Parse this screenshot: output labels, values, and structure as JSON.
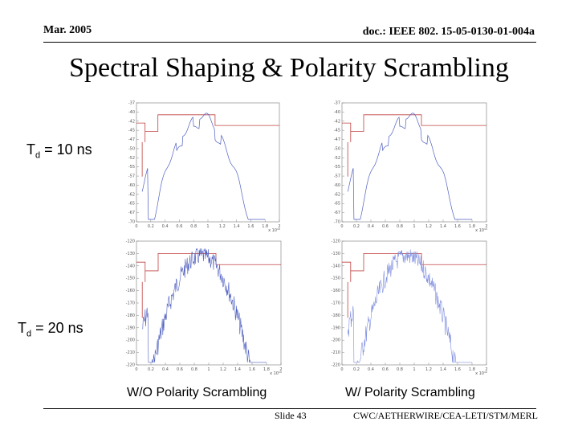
{
  "header": {
    "date": "Mar. 2005",
    "doc": "doc.: IEEE 802. 15-05-0130-01-004a"
  },
  "title": "Spectral Shaping & Polarity Scrambling",
  "row_labels": [
    {
      "prefix": "T",
      "sub": "d",
      "text": " = 10 ns"
    },
    {
      "prefix": "T",
      "sub": "d",
      "text": " = 20 ns"
    }
  ],
  "captions": {
    "left": "W/O Polarity Scrambling",
    "right": "W/ Polarity Scrambling"
  },
  "footer": {
    "slide": "Slide 43",
    "org": "CWC/AETHERWIRE/CEA-LETI/STM/MERL"
  },
  "colors": {
    "mask": "#c04040",
    "trace": "#5060c0",
    "trace_light": "#8090e0",
    "frame": "#999999"
  },
  "chart_data": [
    {
      "type": "line",
      "panel": "top-left",
      "x_ticks": [
        "0",
        "0.2",
        "0.4",
        "0.6",
        "0.8",
        "1",
        "1.2",
        "1.4",
        "1.6",
        "1.8",
        "2"
      ],
      "x_unit": "x 10¹⁰",
      "y_ticks": [
        "-37",
        "-40",
        "-42",
        "-45",
        "-47",
        "-50",
        "-52",
        "-55",
        "-57",
        "-60",
        "-62",
        "-65",
        "-67",
        "-70"
      ],
      "noise": "low"
    },
    {
      "type": "line",
      "panel": "top-right",
      "x_ticks": [
        "0",
        "0.2",
        "0.4",
        "0.6",
        "0.8",
        "1",
        "1.2",
        "1.4",
        "1.6",
        "1.8",
        "2"
      ],
      "x_unit": "x 10¹⁰",
      "y_ticks": [
        "-37",
        "-40",
        "-42",
        "-45",
        "-47",
        "-50",
        "-52",
        "-55",
        "-57",
        "-60",
        "-62",
        "-65",
        "-67",
        "-70"
      ],
      "noise": "low"
    },
    {
      "type": "line",
      "panel": "bottom-left",
      "x_ticks": [
        "0",
        "0.2",
        "0.4",
        "0.6",
        "0.8",
        "1",
        "1.2",
        "1.4",
        "1.6",
        "1.8",
        "2"
      ],
      "x_unit": "x 10¹⁰",
      "y_ticks": [
        "-120",
        "-130",
        "-140",
        "-150",
        "-160",
        "-170",
        "-180",
        "-190",
        "-200",
        "-210",
        "-220"
      ],
      "noise": "high"
    },
    {
      "type": "line",
      "panel": "bottom-right",
      "x_ticks": [
        "0",
        "0.2",
        "0.4",
        "0.6",
        "0.8",
        "1",
        "1.2",
        "1.4",
        "1.6",
        "1.8",
        "2"
      ],
      "x_unit": "x 10¹⁰",
      "y_ticks": [
        "-120",
        "-130",
        "-140",
        "-150",
        "-160",
        "-170",
        "-180",
        "-190",
        "-200",
        "-210",
        "-220"
      ],
      "noise": "high"
    }
  ]
}
